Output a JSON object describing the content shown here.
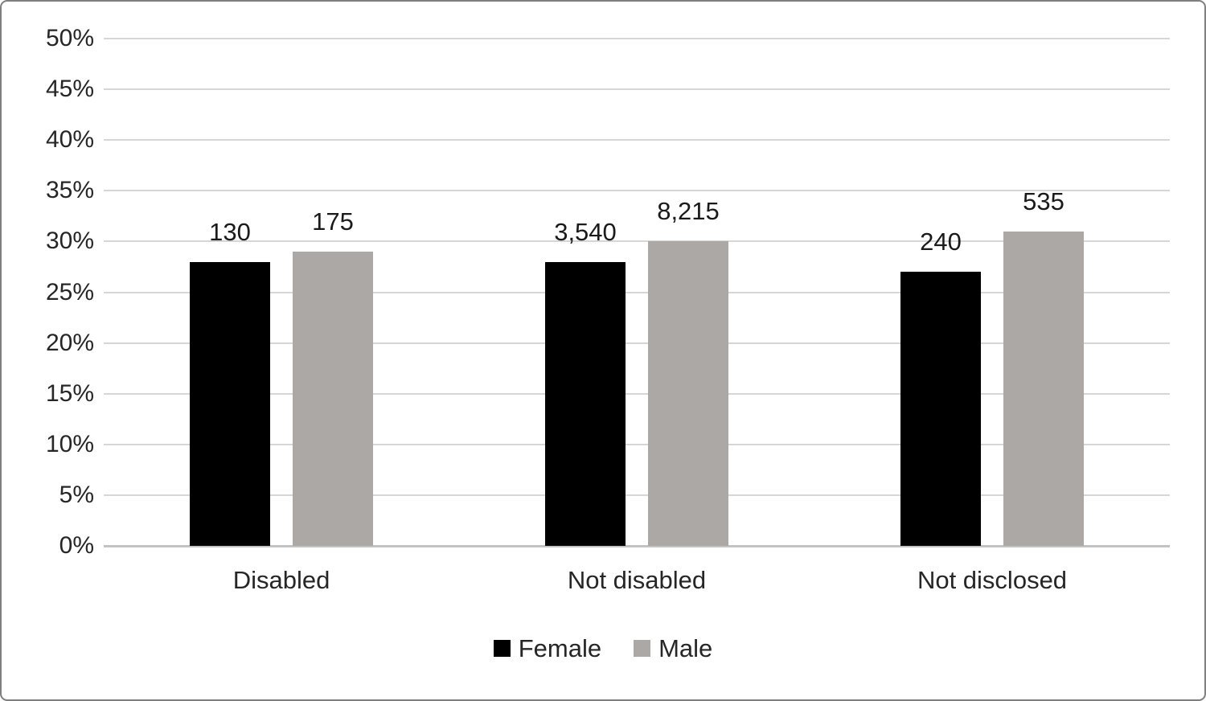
{
  "chart_data": {
    "type": "bar",
    "title": "",
    "categories": [
      "Disabled",
      "Not disabled",
      "Not disclosed"
    ],
    "series": [
      {
        "name": "Female",
        "color": "#000000",
        "values": [
          28,
          28,
          27
        ],
        "data_labels": [
          "130",
          "3,540",
          "240"
        ]
      },
      {
        "name": "Male",
        "color": "#aba8a6",
        "values": [
          29,
          30,
          31
        ],
        "data_labels": [
          "175",
          "8,215",
          "535"
        ]
      }
    ],
    "ylim": [
      0,
      50
    ],
    "y_tick_step": 5,
    "y_ticks": [
      "0%",
      "5%",
      "10%",
      "15%",
      "20%",
      "25%",
      "30%",
      "35%",
      "40%",
      "45%",
      "50%"
    ],
    "grid": "horizontal",
    "legend": {
      "position": "bottom",
      "entries": [
        "Female",
        "Male"
      ]
    }
  },
  "colors": {
    "gridline": "#d6d6d6",
    "baseline": "#c3c3c3",
    "axis_text": "#262626",
    "data_label_text": "#1a1a1a",
    "frame_border": "#7f7f7f",
    "background": "#ffffff"
  }
}
